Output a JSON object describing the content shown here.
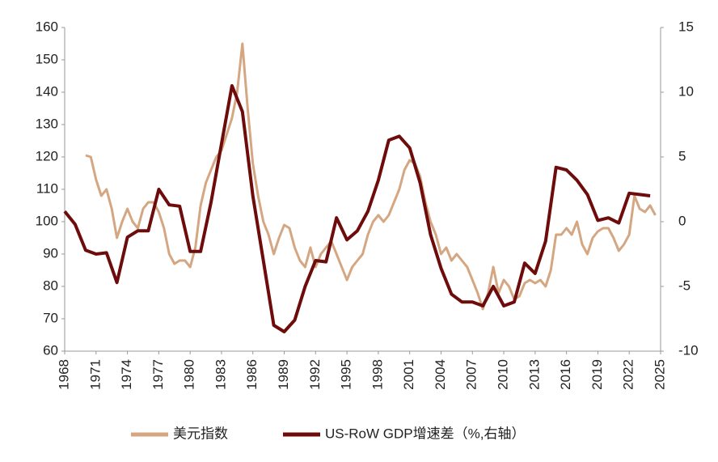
{
  "chart_data": {
    "type": "line",
    "xlim": [
      1968,
      2025
    ],
    "xticks": [
      1968,
      1971,
      1974,
      1977,
      1980,
      1983,
      1986,
      1989,
      1992,
      1995,
      1998,
      2001,
      2004,
      2007,
      2010,
      2013,
      2016,
      2019,
      2022,
      2025
    ],
    "ylim": [
      60,
      160
    ],
    "yticks": [
      60,
      70,
      80,
      90,
      100,
      110,
      120,
      130,
      140,
      150,
      160
    ],
    "y2lim": [
      -10,
      15
    ],
    "y2ticks": [
      -10,
      -5,
      0,
      5,
      10,
      15
    ],
    "grid": false,
    "legend": "bottom",
    "series": [
      {
        "name": "美元指数",
        "color": "#d4a682",
        "x": [
          1970,
          1970.5,
          1971,
          1971.5,
          1972,
          1972.5,
          1973,
          1973.5,
          1974,
          1974.5,
          1975,
          1975.5,
          1976,
          1976.5,
          1977,
          1977.5,
          1978,
          1978.5,
          1979,
          1979.5,
          1980,
          1980.5,
          1981,
          1981.5,
          1982,
          1982.5,
          1983,
          1983.5,
          1984,
          1984.5,
          1985,
          1985.5,
          1986,
          1986.5,
          1987,
          1987.5,
          1988,
          1988.5,
          1989,
          1989.5,
          1990,
          1990.5,
          1991,
          1991.5,
          1992,
          1992.5,
          1993,
          1993.5,
          1994,
          1994.5,
          1995,
          1995.5,
          1996,
          1996.5,
          1997,
          1997.5,
          1998,
          1998.5,
          1999,
          1999.5,
          2000,
          2000.5,
          2001,
          2001.5,
          2002,
          2002.5,
          2003,
          2003.5,
          2004,
          2004.5,
          2005,
          2005.5,
          2006,
          2006.5,
          2007,
          2007.5,
          2008,
          2008.5,
          2009,
          2009.5,
          2010,
          2010.5,
          2011,
          2011.5,
          2012,
          2012.5,
          2013,
          2013.5,
          2014,
          2014.5,
          2015,
          2015.5,
          2016,
          2016.5,
          2017,
          2017.5,
          2018,
          2018.5,
          2019,
          2019.5,
          2020,
          2020.5,
          2021,
          2021.5,
          2022,
          2022.5,
          2023,
          2023.5,
          2024,
          2024.5
        ],
        "values": [
          120.5,
          120,
          113,
          108,
          110,
          104,
          95,
          100,
          104,
          100,
          98,
          104,
          106,
          106,
          103,
          98,
          90,
          87,
          88,
          88,
          86,
          92,
          105,
          112,
          116,
          120,
          122,
          127,
          132,
          140,
          155,
          135,
          118,
          108,
          100,
          96,
          90,
          95,
          99,
          98,
          92,
          88,
          86,
          92,
          86,
          90,
          92,
          94,
          90,
          86,
          82,
          86,
          88,
          90,
          96,
          100,
          102,
          100,
          102,
          106,
          110,
          116,
          119,
          118,
          114,
          106,
          100,
          96,
          90,
          92,
          88,
          90,
          88,
          86,
          82,
          78,
          73,
          78,
          86,
          78,
          82,
          80,
          76,
          77,
          81,
          82,
          81,
          82,
          80,
          85,
          96,
          96,
          98,
          96,
          100,
          93,
          90,
          95,
          97,
          98,
          98,
          95,
          91,
          93,
          96,
          108,
          104,
          103,
          105,
          102
        ]
      },
      {
        "name": "US-RoW GDP增速差（%,右轴）",
        "color": "#6e0c0c",
        "axis": "y2",
        "x": [
          1968,
          1969,
          1970,
          1971,
          1972,
          1973,
          1974,
          1975,
          1976,
          1977,
          1978,
          1979,
          1980,
          1981,
          1982,
          1983,
          1984,
          1985,
          1986,
          1987,
          1988,
          1989,
          1990,
          1991,
          1992,
          1993,
          1994,
          1995,
          1996,
          1997,
          1998,
          1999,
          2000,
          2001,
          2002,
          2003,
          2004,
          2005,
          2006,
          2007,
          2008,
          2009,
          2010,
          2011,
          2012,
          2013,
          2014,
          2015,
          2016,
          2017,
          2018,
          2019,
          2020,
          2021,
          2022,
          2023,
          2024
        ],
        "values": [
          0.8,
          -0.2,
          -2.2,
          -2.5,
          -2.4,
          -4.7,
          -1.2,
          -0.7,
          -0.7,
          2.5,
          1.3,
          1.2,
          -2.3,
          -2.3,
          1.5,
          6,
          10.5,
          8.5,
          2,
          -3,
          -8,
          -8.5,
          -7.6,
          -5,
          -3,
          -3.1,
          0.3,
          -1.4,
          -0.7,
          0.8,
          3.2,
          6.3,
          6.6,
          5.7,
          3,
          -1,
          -3.6,
          -5.6,
          -6.2,
          -6.2,
          -6.5,
          -5,
          -6.5,
          -6.2,
          -3.2,
          -4,
          -1.5,
          4.2,
          4,
          3.2,
          2.1,
          0.1,
          0.3,
          -0.1,
          2.2,
          2.1,
          2
        ]
      }
    ]
  }
}
